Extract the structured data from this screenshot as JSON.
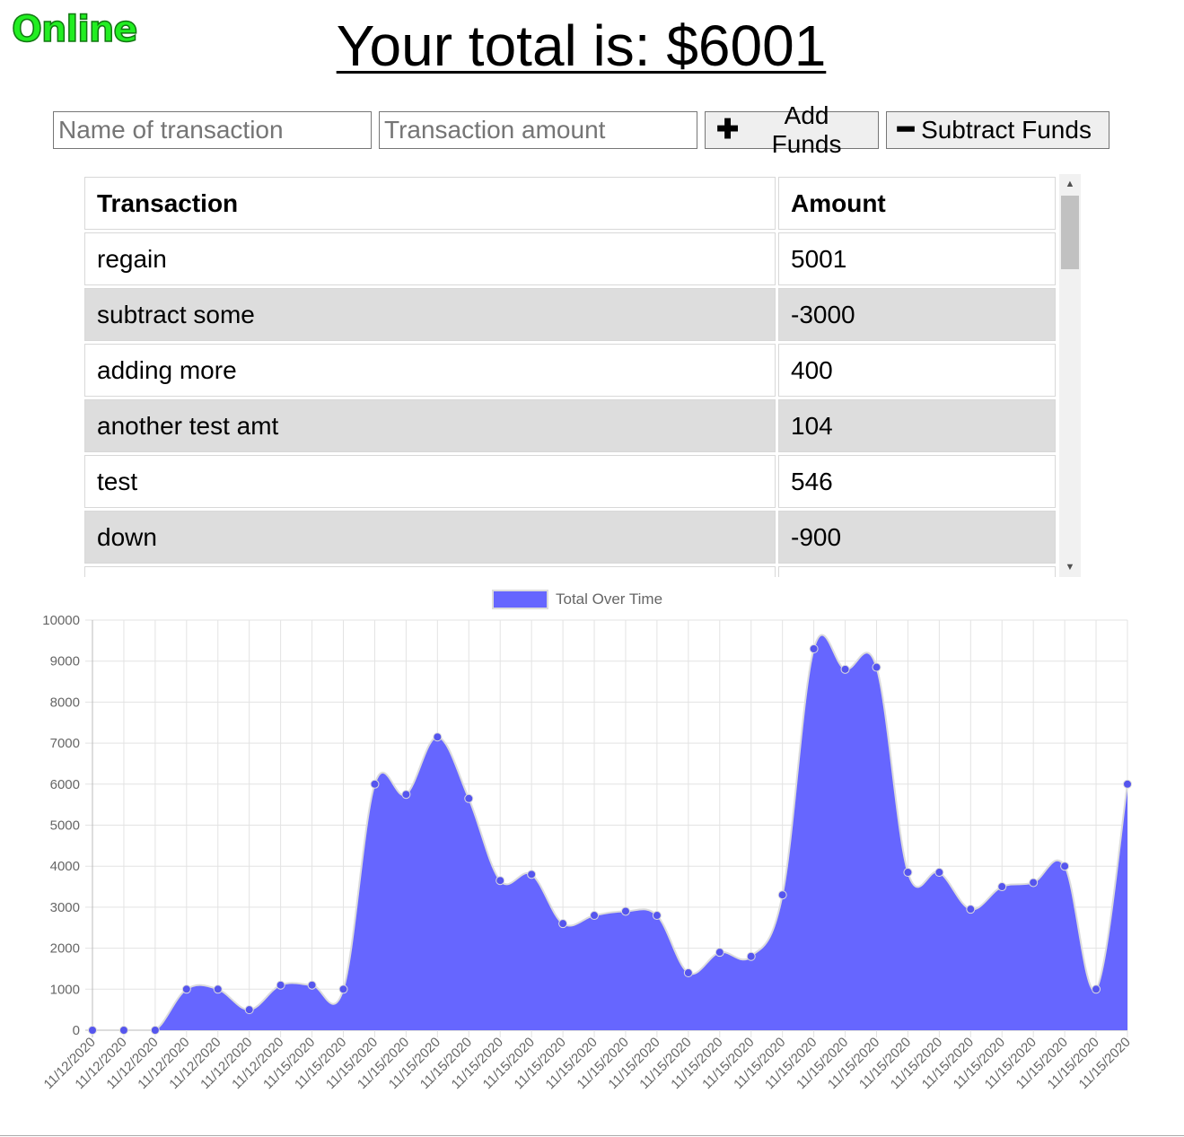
{
  "status": {
    "label": "Online",
    "color": "#22ee22"
  },
  "header": {
    "title": "Your total is: $6001"
  },
  "form": {
    "name_placeholder": "Name of transaction",
    "amount_placeholder": "Transaction amount",
    "add_label": "Add Funds",
    "add_icon": "plus-icon",
    "subtract_label": "Subtract Funds",
    "subtract_icon": "minus-icon"
  },
  "table": {
    "headers": [
      "Transaction",
      "Amount"
    ],
    "rows": [
      [
        "regain",
        "5001"
      ],
      [
        "subtract some",
        "-3000"
      ],
      [
        "adding more",
        "400"
      ],
      [
        "another test amt",
        "104"
      ],
      [
        "test",
        "546"
      ],
      [
        "down",
        "-900"
      ]
    ]
  },
  "chart_data": {
    "type": "area",
    "legend": [
      "Total Over Time"
    ],
    "legend_position": "top",
    "fill_color": "#6666ff",
    "point_color": "#5555ee",
    "grid": true,
    "ylim": [
      0,
      10000
    ],
    "yticks": [
      0,
      1000,
      2000,
      3000,
      4000,
      5000,
      6000,
      7000,
      8000,
      9000,
      10000
    ],
    "x": [
      "11/12/2020",
      "11/12/2020",
      "11/12/2020",
      "11/12/2020",
      "11/12/2020",
      "11/12/2020",
      "11/12/2020",
      "11/15/2020",
      "11/15/2020",
      "11/15/2020",
      "11/15/2020",
      "11/15/2020",
      "11/15/2020",
      "11/15/2020",
      "11/15/2020",
      "11/15/2020",
      "11/15/2020",
      "11/15/2020",
      "11/15/2020",
      "11/15/2020",
      "11/15/2020",
      "11/15/2020",
      "11/15/2020",
      "11/15/2020",
      "11/15/2020",
      "11/15/2020",
      "11/15/2020",
      "11/15/2020",
      "11/15/2020",
      "11/15/2020",
      "11/15/2020",
      "11/15/2020",
      "11/15/2020",
      "11/15/2020"
    ],
    "series": [
      {
        "name": "Total Over Time",
        "values": [
          0,
          0,
          0,
          1000,
          1000,
          500,
          1100,
          1100,
          1000,
          6000,
          5750,
          7150,
          5650,
          3650,
          3800,
          2600,
          2800,
          2900,
          2800,
          1400,
          1900,
          1800,
          3300,
          9300,
          8800,
          8850,
          3850,
          3850,
          2950,
          3500,
          3600,
          4000,
          1000,
          6000
        ]
      }
    ]
  }
}
